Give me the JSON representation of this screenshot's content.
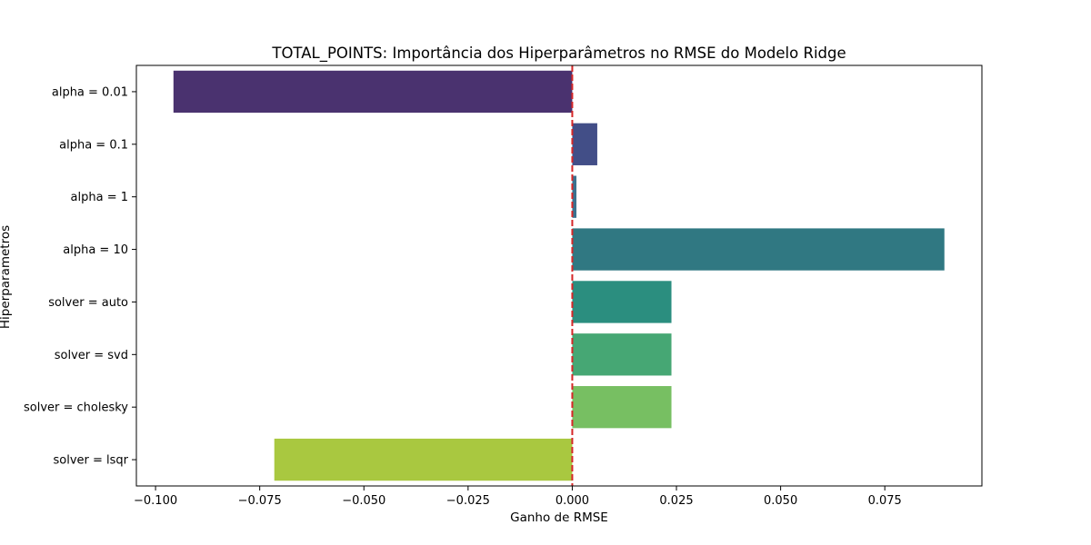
{
  "chart_data": {
    "type": "bar",
    "orientation": "horizontal",
    "title": "TOTAL_POINTS: Importância dos Hiperparâmetros no RMSE do Modelo Ridge",
    "xlabel": "Ganho de RMSE",
    "ylabel": "Hiperparametros",
    "categories": [
      "alpha = 0.01",
      "alpha = 0.1",
      "alpha = 1",
      "alpha = 10",
      "solver = auto",
      "solver = svd",
      "solver = cholesky",
      "solver = lsqr"
    ],
    "values": [
      -0.0957,
      0.006,
      0.001,
      0.0893,
      0.0238,
      0.0238,
      0.0238,
      -0.0715
    ],
    "colors": [
      "#4a326f",
      "#424e87",
      "#3a7290",
      "#307882",
      "#2b8e7f",
      "#46a774",
      "#77bf62",
      "#a9c840"
    ],
    "xlim": [
      -0.1046,
      0.0983
    ],
    "xticks": [
      -0.1,
      -0.075,
      -0.05,
      -0.025,
      0.0,
      0.025,
      0.05,
      0.075
    ],
    "xtick_labels": [
      "−0.100",
      "−0.075",
      "−0.050",
      "−0.025",
      "0.000",
      "0.025",
      "0.050",
      "0.075"
    ],
    "reference_line": {
      "x": 0,
      "color": "#d62728",
      "style": "dashed"
    },
    "grid": false
  }
}
